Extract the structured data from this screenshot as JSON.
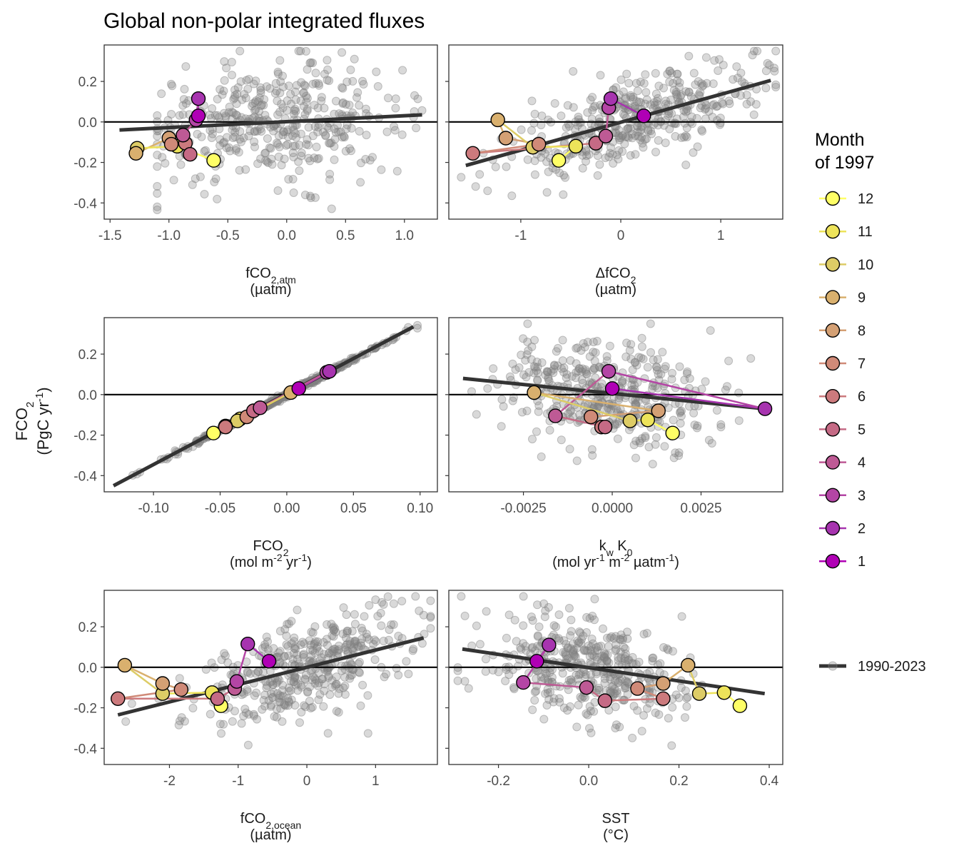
{
  "title": "Global non-polar integrated fluxes",
  "y_axis": {
    "label_main": "FCO",
    "label_sub": "2",
    "unit_open": "(PgC yr",
    "unit_sup": "-1",
    "unit_close": ")"
  },
  "legend": {
    "title_line1": "Month",
    "title_line2": "of 1997",
    "months": [
      "12",
      "11",
      "10",
      "9",
      "8",
      "7",
      "6",
      "5",
      "4",
      "3",
      "2",
      "1"
    ],
    "month_colors": [
      "#FFFF66",
      "#EDE35A",
      "#DDCC66",
      "#D9B06E",
      "#D4A074",
      "#D08A78",
      "#CC7A7D",
      "#C56A85",
      "#BE5A95",
      "#B445A5",
      "#A734AF",
      "#B000B5"
    ],
    "trend_label": "1990-2023"
  },
  "colors": {
    "scatter": "#808080",
    "trend": "#333333",
    "zero": "#000000",
    "frame": "#333333"
  },
  "chart_data": [
    {
      "type": "scatter",
      "panel": "fCO2,atm",
      "xlabel_main": "fCO",
      "xlabel_sub": "2,atm",
      "xlabel_unit": "(µatm)",
      "xlim": [
        -1.55,
        1.28
      ],
      "ylim": [
        -0.48,
        0.38
      ],
      "xticks": [
        -1.5,
        -1.0,
        -0.5,
        0.0,
        0.5,
        1.0
      ],
      "xtick_labels": [
        "-1.5",
        "-1.0",
        "-0.5",
        "0.0",
        "0.5",
        "1.0"
      ],
      "yticks": [
        0.2,
        0.0,
        -0.2,
        -0.4
      ],
      "ytick_labels": [
        "0.2",
        "0.0",
        "-0.2",
        "-0.4"
      ],
      "trend": [
        [
          -1.42,
          -0.04
        ],
        [
          1.15,
          0.035
        ]
      ],
      "cloud": {
        "x_center": -0.1,
        "x_spread": 0.55,
        "x_min": -1.1,
        "x_max": 1.15,
        "slope": 0.03,
        "intercept": 0.0,
        "noise": 0.14
      },
      "months_1997": {
        "month": [
          12,
          11,
          10,
          9,
          8,
          7,
          6,
          5,
          4,
          3,
          2,
          1
        ],
        "x": [
          -0.62,
          -0.93,
          -1.27,
          -1.28,
          -1.0,
          -0.98,
          -0.86,
          -0.82,
          -0.88,
          -0.77,
          -0.75,
          -0.75
        ],
        "y": [
          -0.19,
          -0.12,
          -0.13,
          -0.155,
          -0.08,
          -0.11,
          -0.105,
          -0.16,
          -0.065,
          0.01,
          0.115,
          0.03
        ]
      }
    },
    {
      "type": "scatter",
      "panel": "ΔfCO2",
      "xlabel_main": "ΔfCO",
      "xlabel_sub": "2",
      "xlabel_unit": "(µatm)",
      "xlim": [
        -1.72,
        1.62
      ],
      "ylim": [
        -0.48,
        0.38
      ],
      "xticks": [
        -1,
        0,
        1
      ],
      "xtick_labels": [
        "-1",
        "0",
        "1"
      ],
      "yticks": [
        0.2,
        0.0,
        -0.2,
        -0.4
      ],
      "ytick_labels": [
        "0.2",
        "0.0",
        "-0.2",
        "-0.4"
      ],
      "trend": [
        [
          -1.55,
          -0.215
        ],
        [
          1.5,
          0.205
        ]
      ],
      "cloud": {
        "x_center": 0.15,
        "x_spread": 0.6,
        "x_min": -1.6,
        "x_max": 1.55,
        "slope": 0.14,
        "intercept": 0.0,
        "noise": 0.1
      },
      "months_1997": {
        "month": [
          12,
          11,
          10,
          9,
          8,
          7,
          6,
          5,
          4,
          3,
          2,
          1
        ],
        "x": [
          -0.62,
          -0.45,
          -0.88,
          -1.23,
          -1.15,
          -0.82,
          -1.48,
          -0.25,
          -0.15,
          -0.12,
          -0.1,
          0.23
        ],
        "y": [
          -0.19,
          -0.12,
          -0.125,
          0.01,
          -0.08,
          -0.11,
          -0.155,
          -0.105,
          -0.07,
          0.07,
          0.115,
          0.03
        ]
      }
    },
    {
      "type": "scatter",
      "panel": "FCO2",
      "xlabel_main": "FCO",
      "xlabel_sub": "2",
      "xlabel_unit_open": "(mol m",
      "xlabel_unit_sup1": "-2",
      "xlabel_unit_mid": " yr",
      "xlabel_unit_sup2": "-1",
      "xlabel_unit_close": ")",
      "xlim": [
        -0.137,
        0.113
      ],
      "ylim": [
        -0.48,
        0.38
      ],
      "xticks": [
        -0.1,
        -0.05,
        0.0,
        0.05,
        0.1
      ],
      "xtick_labels": [
        "-0.10",
        "-0.05",
        "0.00",
        "0.05",
        "0.10"
      ],
      "yticks": [
        0.2,
        0.0,
        -0.2,
        -0.4
      ],
      "ytick_labels": [
        "0.2",
        "0.0",
        "-0.2",
        "-0.4"
      ],
      "trend": [
        [
          -0.13,
          -0.45
        ],
        [
          0.095,
          0.335
        ]
      ],
      "cloud": {
        "x_center": -0.005,
        "x_spread": 0.04,
        "x_min": -0.13,
        "x_max": 0.098,
        "slope": 3.49,
        "intercept": 0.0,
        "noise": 0.006
      },
      "months_1997": {
        "month": [
          12,
          11,
          10,
          9,
          8,
          7,
          6,
          5,
          4,
          3,
          2,
          1
        ],
        "x": [
          -0.055,
          -0.035,
          -0.037,
          0.003,
          -0.046,
          -0.03,
          -0.046,
          -0.025,
          -0.02,
          0.03,
          0.032,
          0.009
        ],
        "y": [
          -0.19,
          -0.12,
          -0.13,
          0.01,
          -0.155,
          -0.11,
          -0.16,
          -0.08,
          -0.065,
          0.11,
          0.115,
          0.03
        ]
      }
    },
    {
      "type": "scatter",
      "panel": "kw K0",
      "xlabel_main": "k",
      "xlabel_sub1": "w",
      "xlabel_mid": " K",
      "xlabel_sub2": "0",
      "xlabel_unit_open": "(mol yr",
      "xlabel_unit_sup1": "-1",
      "xlabel_unit_mid1": " m",
      "xlabel_unit_sup2": "-2",
      "xlabel_unit_mid2": " µatm",
      "xlabel_unit_sup3": "-1",
      "xlabel_unit_close": ")",
      "xlim": [
        -0.0046,
        0.0048
      ],
      "ylim": [
        -0.48,
        0.38
      ],
      "xticks": [
        -0.0025,
        0.0,
        0.0025
      ],
      "xtick_labels": [
        "-0.0025",
        "0.0000",
        "0.0025"
      ],
      "yticks": [
        0.2,
        0.0,
        -0.2,
        -0.4
      ],
      "ytick_labels": [
        "0.2",
        "0.0",
        "-0.2",
        "-0.4"
      ],
      "trend": [
        [
          -0.0042,
          0.08
        ],
        [
          0.0043,
          -0.07
        ]
      ],
      "cloud": {
        "x_center": -0.0002,
        "x_spread": 0.0014,
        "x_min": -0.0043,
        "x_max": 0.0042,
        "slope": -17.6,
        "intercept": 0.005,
        "noise": 0.13
      },
      "months_1997": {
        "month": [
          12,
          11,
          10,
          9,
          8,
          7,
          6,
          5,
          4,
          3,
          2,
          1
        ],
        "x": [
          0.0017,
          0.001,
          0.0005,
          -0.0022,
          0.0013,
          -0.0006,
          -0.0003,
          -0.0002,
          -0.0016,
          -0.0001,
          0.0043,
          0.0
        ],
        "y": [
          -0.19,
          -0.125,
          -0.13,
          0.01,
          -0.08,
          -0.11,
          -0.16,
          -0.16,
          -0.105,
          0.115,
          -0.07,
          0.03
        ]
      }
    },
    {
      "type": "scatter",
      "panel": "fCO2,ocean",
      "xlabel_main": "fCO",
      "xlabel_sub": "2,ocean",
      "xlabel_unit": "(µatm)",
      "xlim": [
        -2.95,
        1.9
      ],
      "ylim": [
        -0.48,
        0.38
      ],
      "xticks": [
        -2,
        -1,
        0,
        1
      ],
      "xtick_labels": [
        "-2",
        "-1",
        "0",
        "1"
      ],
      "yticks": [
        0.2,
        0.0,
        -0.2,
        -0.4
      ],
      "ytick_labels": [
        "0.2",
        "0.0",
        "-0.2",
        "-0.4"
      ],
      "trend": [
        [
          -2.75,
          -0.235
        ],
        [
          1.7,
          0.145
        ]
      ],
      "cloud": {
        "x_center": 0.0,
        "x_spread": 0.75,
        "x_min": -2.8,
        "x_max": 1.8,
        "slope": 0.085,
        "intercept": 0.0,
        "noise": 0.12
      },
      "months_1997": {
        "month": [
          12,
          11,
          10,
          9,
          8,
          7,
          6,
          5,
          4,
          3,
          2,
          1
        ],
        "x": [
          -1.25,
          -1.38,
          -2.1,
          -2.65,
          -2.1,
          -1.83,
          -2.75,
          -1.3,
          -1.05,
          -1.02,
          -0.86,
          -0.55
        ],
        "y": [
          -0.19,
          -0.125,
          -0.13,
          0.01,
          -0.08,
          -0.11,
          -0.155,
          -0.155,
          -0.105,
          -0.07,
          0.115,
          0.03
        ]
      }
    },
    {
      "type": "scatter",
      "panel": "SST",
      "xlabel_main": "SST",
      "xlabel_unit": "(°C)",
      "xlim": [
        -0.31,
        0.43
      ],
      "ylim": [
        -0.48,
        0.38
      ],
      "xticks": [
        -0.2,
        0.0,
        0.2,
        0.4
      ],
      "xtick_labels": [
        "-0.2",
        "0.0",
        "0.2",
        "0.4"
      ],
      "yticks": [
        0.2,
        0.0,
        -0.2,
        -0.4
      ],
      "ytick_labels": [
        "0.2",
        "0.0",
        "-0.2",
        "-0.4"
      ],
      "trend": [
        [
          -0.28,
          0.09
        ],
        [
          0.39,
          -0.13
        ]
      ],
      "cloud": {
        "x_center": 0.0,
        "x_spread": 0.11,
        "x_min": -0.29,
        "x_max": 0.4,
        "slope": -0.33,
        "intercept": 0.0,
        "noise": 0.12
      },
      "months_1997": {
        "month": [
          12,
          11,
          10,
          9,
          8,
          7,
          6,
          5,
          4,
          3,
          2,
          1
        ],
        "x": [
          0.335,
          0.3,
          0.245,
          0.22,
          0.165,
          0.108,
          0.165,
          0.036,
          -0.005,
          -0.145,
          -0.088,
          -0.115
        ],
        "y": [
          -0.19,
          -0.125,
          -0.13,
          0.01,
          -0.08,
          -0.105,
          -0.155,
          -0.165,
          -0.1,
          -0.075,
          0.11,
          0.03
        ]
      }
    }
  ]
}
